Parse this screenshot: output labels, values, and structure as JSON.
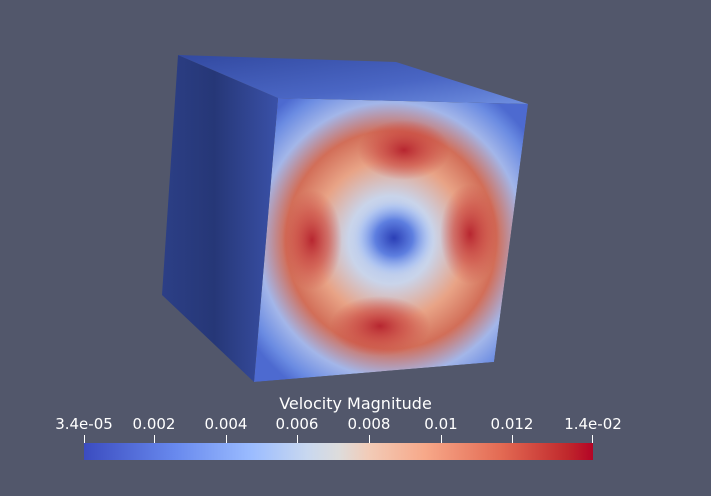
{
  "scene": {
    "background_color": "#52576b",
    "object": "cube",
    "colored_by": "Velocity Magnitude"
  },
  "colormap": {
    "name": "Cool to Warm",
    "low_color": "#3b4cc0",
    "mid_color": "#dddcdc",
    "high_color": "#b40426"
  },
  "legend": {
    "title": "Velocity Magnitude",
    "range": [
      3.4e-05,
      0.014
    ],
    "ticks": [
      {
        "label": "3.4e-05",
        "value": 3.4e-05
      },
      {
        "label": "0.002",
        "value": 0.002
      },
      {
        "label": "0.004",
        "value": 0.004
      },
      {
        "label": "0.006",
        "value": 0.006
      },
      {
        "label": "0.008",
        "value": 0.008
      },
      {
        "label": "0.01",
        "value": 0.01
      },
      {
        "label": "0.012",
        "value": 0.012
      },
      {
        "label": "1.4e-02",
        "value": 0.014
      }
    ]
  }
}
